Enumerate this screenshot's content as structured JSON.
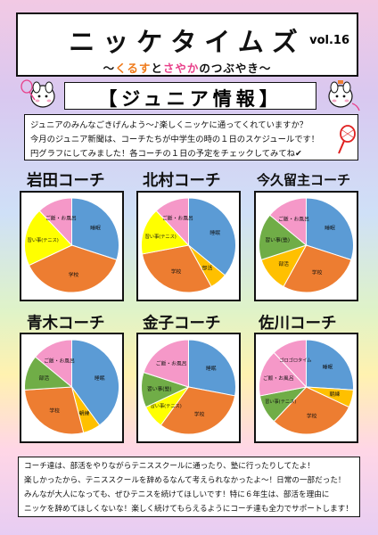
{
  "header": {
    "title": "ニッケタイムズ",
    "vol": "vol.16",
    "subtitle": {
      "prefix": "〜",
      "name1": "くるす",
      "and": "と",
      "name2": "さやか",
      "suffix": "のつぶやき〜"
    }
  },
  "banner": {
    "text": "【ジュニア情報】"
  },
  "intro": [
    "ジュニアのみんなごきげんよう〜♪楽しくニッケに通ってくれていますか？",
    "今月のジュニア新聞は、コーチたちが中学生の時の１日のスケジュールです！",
    "円グラフにしてみました！各コーチの１日の予定をチェックしてみてね✔"
  ],
  "colors": {
    "sleep": "#5b9bd5",
    "school": "#ed7d31",
    "meal": "#ffc000",
    "lesson": "#ffff00",
    "cram": "#70ad47",
    "bath": "#f598c8",
    "club": "#70ad47",
    "goro": "#f598c8"
  },
  "chart_data": [
    {
      "type": "pie",
      "title": "岩田コーチ",
      "slices": [
        {
          "label": "睡眠",
          "value": 30,
          "color": "#5b9bd5"
        },
        {
          "label": "学校",
          "value": 38,
          "color": "#ed7d31"
        },
        {
          "label": "習い事(テニス)",
          "value": 20,
          "color": "#ffff00"
        },
        {
          "label": "ご飯・お風呂",
          "value": 12,
          "color": "#f598c8"
        }
      ]
    },
    {
      "type": "pie",
      "title": "北村コーチ",
      "slices": [
        {
          "label": "睡眠",
          "value": 36,
          "color": "#5b9bd5"
        },
        {
          "label": "部活",
          "value": 6,
          "color": "#ffc000"
        },
        {
          "label": "学校",
          "value": 30,
          "color": "#ed7d31"
        },
        {
          "label": "習い事(テニス)",
          "value": 16,
          "color": "#ffff00"
        },
        {
          "label": "ご飯・お風呂",
          "value": 12,
          "color": "#f598c8"
        }
      ]
    },
    {
      "type": "pie",
      "title": "今久留主コーチ",
      "slices": [
        {
          "label": "睡眠",
          "value": 30,
          "color": "#5b9bd5"
        },
        {
          "label": "学校",
          "value": 28,
          "color": "#ed7d31"
        },
        {
          "label": "部活",
          "value": 12,
          "color": "#ffc000"
        },
        {
          "label": "習い事(塾)",
          "value": 16,
          "color": "#70ad47"
        },
        {
          "label": "ご飯・お風呂",
          "value": 14,
          "color": "#f598c8"
        }
      ]
    },
    {
      "type": "pie",
      "title": "青木コーチ",
      "slices": [
        {
          "label": "睡眠",
          "value": 40,
          "color": "#5b9bd5"
        },
        {
          "label": "朝練",
          "value": 6,
          "color": "#ffc000"
        },
        {
          "label": "学校",
          "value": 28,
          "color": "#ed7d31"
        },
        {
          "label": "部活",
          "value": 12,
          "color": "#70ad47"
        },
        {
          "label": "ご飯・お風呂",
          "value": 14,
          "color": "#f598c8"
        }
      ]
    },
    {
      "type": "pie",
      "title": "金子コーチ",
      "slices": [
        {
          "label": "睡眠",
          "value": 28,
          "color": "#5b9bd5"
        },
        {
          "label": "学校",
          "value": 32,
          "color": "#ed7d31"
        },
        {
          "label": "習い事(テニス)",
          "value": 8,
          "color": "#ffff00"
        },
        {
          "label": "習い事(塾)",
          "value": 12,
          "color": "#70ad47"
        },
        {
          "label": "ご飯・お風呂",
          "value": 20,
          "color": "#f598c8"
        }
      ]
    },
    {
      "type": "pie",
      "title": "佐川コーチ",
      "slices": [
        {
          "label": "睡眠",
          "value": 26,
          "color": "#5b9bd5"
        },
        {
          "label": "朝練",
          "value": 6,
          "color": "#ffc000"
        },
        {
          "label": "学校",
          "value": 30,
          "color": "#ed7d31"
        },
        {
          "label": "習い事(テニス)",
          "value": 10,
          "color": "#70ad47"
        },
        {
          "label": "ご飯・お風呂",
          "value": 16,
          "color": "#f598c8"
        },
        {
          "label": "ゴロゴロタイム",
          "value": 12,
          "color": "#f598c8"
        }
      ]
    }
  ],
  "closing": [
    "コーチ達は、部活をやりながらテニススクールに通ったり、塾に行ったりしてたよ！",
    "楽しかったから、テニススクールを辞めるなんて考えられなかったよ〜！日常の一部だった！",
    "みんなが大人になっても、ぜひテニスを続けてほしいです！特に６年生は、部活を理由に",
    "ニッケを辞めてほしくないな！楽しく続けてもらえるようにコーチ達も全力でサポートします！"
  ]
}
